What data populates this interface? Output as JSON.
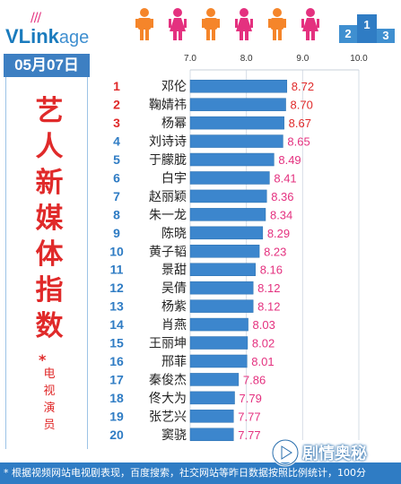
{
  "brand": {
    "logo_main": "VLink",
    "logo_accent": "age"
  },
  "date": "05月07日",
  "title": "艺人新媒体指数",
  "title_mark": "*",
  "subtitle": "电视演员",
  "footnote": "* 根据视频网站电视剧表现，百度搜索，社交网站等昨日数据按照比例统计，100分",
  "watermark": "剧情奥秘",
  "colors": {
    "bar": "#3c86cd",
    "bar_dark": "#2a6fae",
    "rank_top3": "#e02a2a",
    "rank_other": "#2f7cc4",
    "value_top3": "#e02a2a",
    "value_other": "#e4317f",
    "header_bg": "#3d7fc2",
    "figure_orange": "#f5852a",
    "figure_pink": "#e4317f"
  },
  "chart_data": {
    "type": "bar",
    "orientation": "horizontal",
    "xlim": [
      7.0,
      10.0
    ],
    "xticks": [
      "7.0",
      "8.0",
      "9.0",
      "10.0"
    ],
    "grid": true,
    "ranks": [
      "1",
      "2",
      "3",
      "4",
      "5",
      "6",
      "7",
      "8",
      "9",
      "10",
      "11",
      "12",
      "13",
      "14",
      "15",
      "16",
      "17",
      "18",
      "19",
      "20"
    ],
    "categories": [
      "邓伦",
      "鞠婧祎",
      "杨幂",
      "刘诗诗",
      "于朦胧",
      "白宇",
      "赵丽颖",
      "朱一龙",
      "陈晓",
      "黄子韬",
      "景甜",
      "吴倩",
      "杨紫",
      "肖燕",
      "王丽坤",
      "邢菲",
      "秦俊杰",
      "佟大为",
      "张艺兴",
      "窦骁"
    ],
    "values": [
      8.72,
      8.7,
      8.67,
      8.65,
      8.49,
      8.41,
      8.36,
      8.34,
      8.29,
      8.23,
      8.16,
      8.12,
      8.12,
      8.03,
      8.02,
      8.01,
      7.86,
      7.79,
      7.77,
      7.77
    ],
    "value_labels": [
      "8.72",
      "8.70",
      "8.67",
      "8.65",
      "8.49",
      "8.41",
      "8.36",
      "8.34",
      "8.29",
      "8.23",
      "8.16",
      "8.12",
      "8.12",
      "8.03",
      "8.02",
      "8.01",
      "7.86",
      "7.79",
      "7.77",
      "7.77"
    ]
  }
}
